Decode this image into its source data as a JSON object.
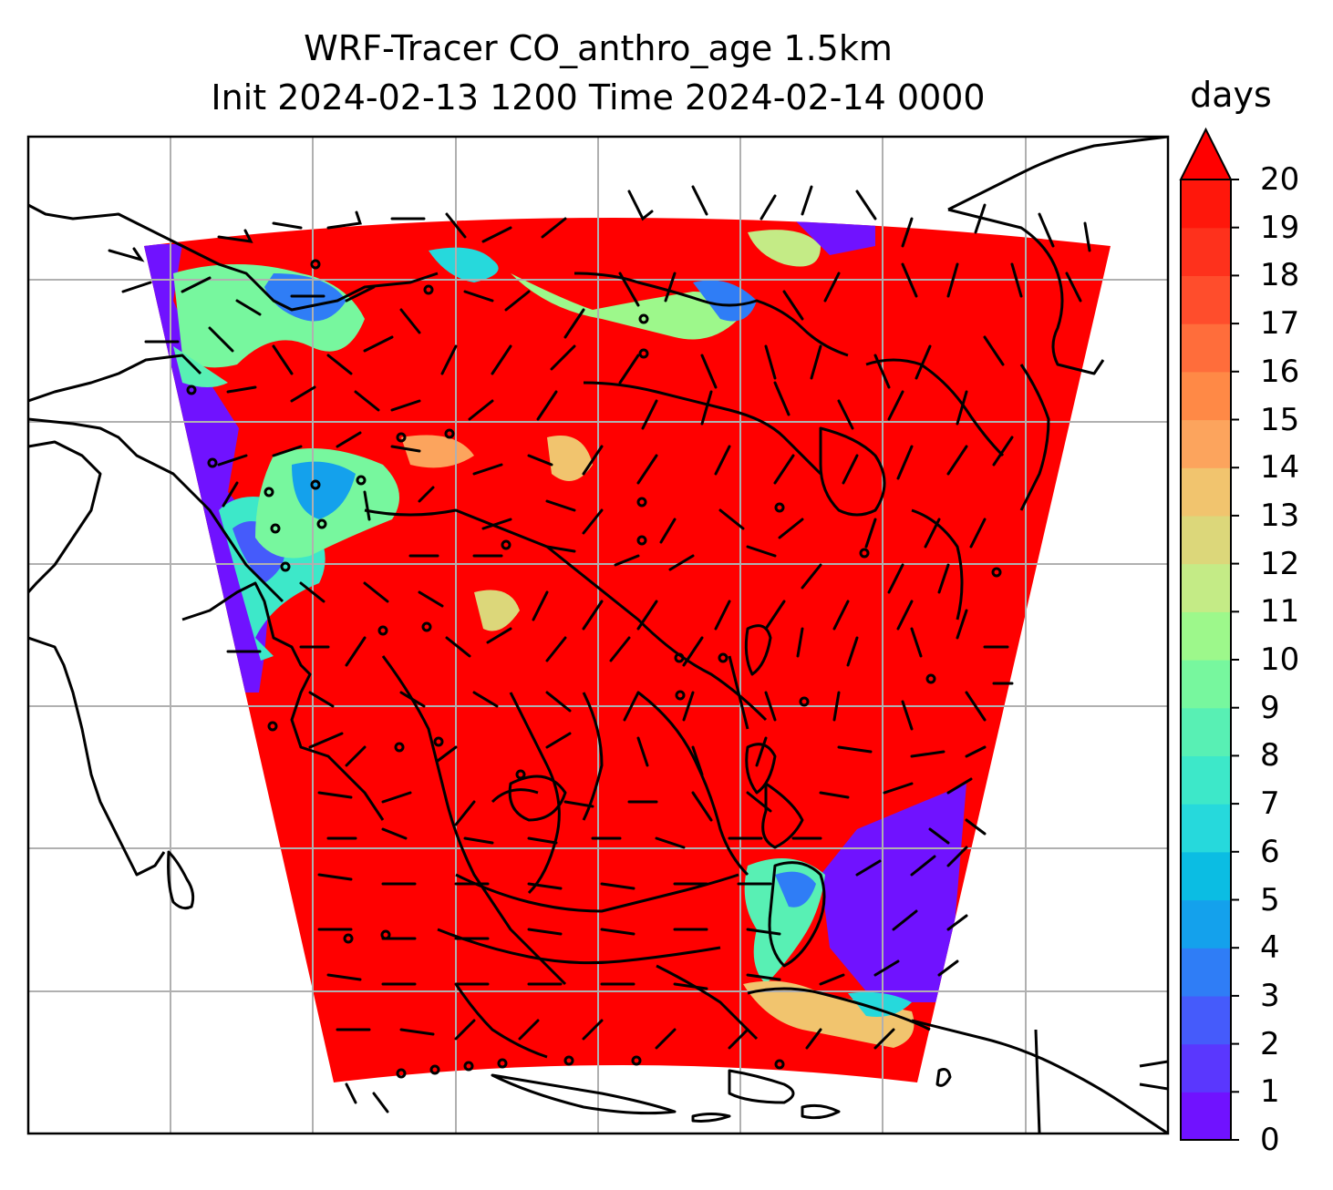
{
  "title": {
    "line1": "WRF-Tracer CO_anthro_age 1.5km",
    "line2": "Init 2024-02-13 1200 Time 2024-02-14 0000"
  },
  "colorbar": {
    "unit": "days",
    "ticks": [
      "0",
      "1",
      "2",
      "3",
      "4",
      "5",
      "6",
      "7",
      "8",
      "9",
      "10",
      "11",
      "12",
      "13",
      "14",
      "15",
      "16",
      "17",
      "18",
      "19",
      "20"
    ],
    "extend": "max",
    "colors": [
      "#7012ff",
      "#5a37fe",
      "#455bfb",
      "#2f7df6",
      "#14a1ec",
      "#0bbde3",
      "#26d9dc",
      "#3de8c9",
      "#58f0b4",
      "#77f79e",
      "#9df88b",
      "#c4eb86",
      "#dcd77a",
      "#f1c46e",
      "#fca45d",
      "#ff8946",
      "#ff6d3b",
      "#ff4d2c",
      "#fe311c",
      "#ff170b",
      "#ff0000"
    ]
  },
  "map": {
    "field": "CO_anthro_age",
    "background_age_days": 20,
    "gridlines": true,
    "coastline_color": "#000000",
    "wind_barbs": true
  }
}
